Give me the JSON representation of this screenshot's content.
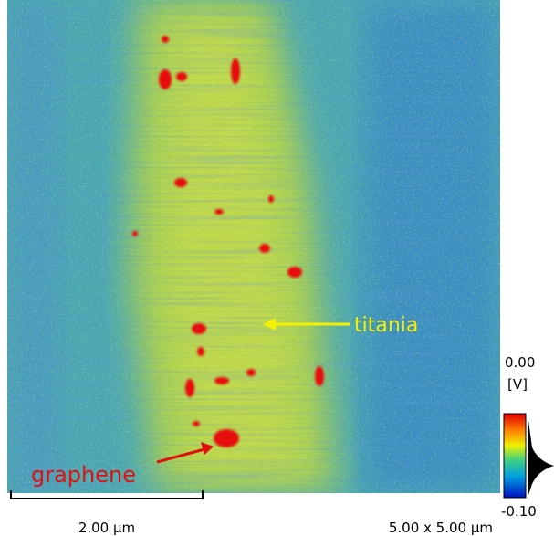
{
  "image": {
    "annotations": [
      {
        "label": "titania"
      },
      {
        "label": "graphene"
      }
    ]
  },
  "colorbar": {
    "max": "0.00",
    "unit": "[V]",
    "min": "-0.10"
  },
  "scale_bar": {
    "label": "2.00 µm"
  },
  "scan_size": "5.00 x 5.00 µm"
}
